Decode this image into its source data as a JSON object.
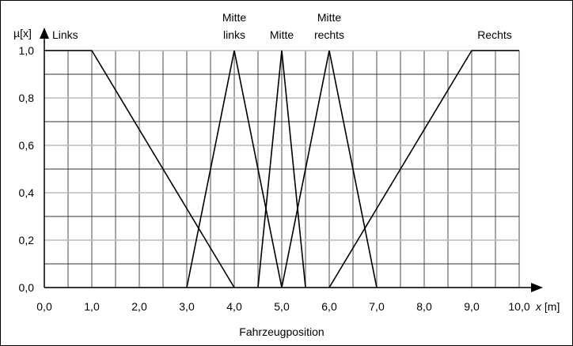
{
  "chart_data": {
    "type": "line",
    "y_axis_label": "µ[x]",
    "x_axis_label": "x [m]",
    "x_axis_label_var": "x",
    "x_axis_label_unit": " [m]",
    "caption": "Fahrzeugposition",
    "xlim": [
      0,
      10
    ],
    "ylim": [
      0,
      1
    ],
    "x_ticks": [
      "0,0",
      "1,0",
      "2,0",
      "3,0",
      "4,0",
      "5,0",
      "6,0",
      "7,0",
      "8,0",
      "9,0",
      "10,0"
    ],
    "x_tick_values": [
      0,
      1,
      2,
      3,
      4,
      5,
      6,
      7,
      8,
      9,
      10
    ],
    "y_ticks": [
      "0,0",
      "0,2",
      "0,4",
      "0,6",
      "0,8",
      "1,0"
    ],
    "y_tick_values": [
      0,
      0.2,
      0.4,
      0.6,
      0.8,
      1.0
    ],
    "grid": true,
    "grid_x_step": 0.5,
    "grid_y_step": 0.1,
    "series": [
      {
        "name": "Links",
        "label_lines": [
          "Links"
        ],
        "x": [
          0,
          1,
          4
        ],
        "y": [
          1,
          1,
          0
        ]
      },
      {
        "name": "Mitte links",
        "label_lines": [
          "Mitte",
          "links"
        ],
        "x": [
          3,
          4,
          5
        ],
        "y": [
          0,
          1,
          0
        ]
      },
      {
        "name": "Mitte",
        "label_lines": [
          "Mitte"
        ],
        "x": [
          4.5,
          5,
          5.5
        ],
        "y": [
          0,
          1,
          0
        ]
      },
      {
        "name": "Mitte rechts",
        "label_lines": [
          "Mitte",
          "rechts"
        ],
        "x": [
          5,
          6,
          7
        ],
        "y": [
          0,
          1,
          0
        ]
      },
      {
        "name": "Rechts",
        "label_lines": [
          "Rechts"
        ],
        "x": [
          6,
          9,
          10
        ],
        "y": [
          0,
          1,
          1
        ]
      }
    ],
    "colors": {
      "line": "#000000",
      "grid_dark": "#333333",
      "grid_light": "#bbbbbb",
      "grid_vertical": "#888888"
    }
  }
}
